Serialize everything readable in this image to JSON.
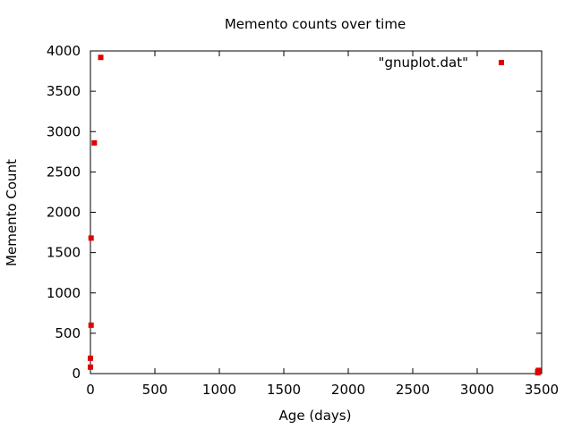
{
  "chart_data": {
    "type": "scatter",
    "title": "Memento counts over time",
    "xlabel": "Age (days)",
    "ylabel": "Memento Count",
    "xlim": [
      0,
      3500
    ],
    "ylim": [
      0,
      4000
    ],
    "xticks": [
      0,
      500,
      1000,
      1500,
      2000,
      2500,
      3000,
      3500
    ],
    "yticks": [
      0,
      500,
      1000,
      1500,
      2000,
      2500,
      3000,
      3500,
      4000
    ],
    "grid": false,
    "legend_position": "top-right",
    "series": [
      {
        "name": "\"gnuplot.dat\"",
        "color": "#e00000",
        "marker": "square",
        "points": [
          {
            "x": 0,
            "y": 80
          },
          {
            "x": 0,
            "y": 190
          },
          {
            "x": 5,
            "y": 600
          },
          {
            "x": 5,
            "y": 1680
          },
          {
            "x": 30,
            "y": 2860
          },
          {
            "x": 80,
            "y": 3920
          },
          {
            "x": 3470,
            "y": 10
          },
          {
            "x": 3470,
            "y": 25
          },
          {
            "x": 3475,
            "y": 40
          }
        ]
      }
    ]
  }
}
